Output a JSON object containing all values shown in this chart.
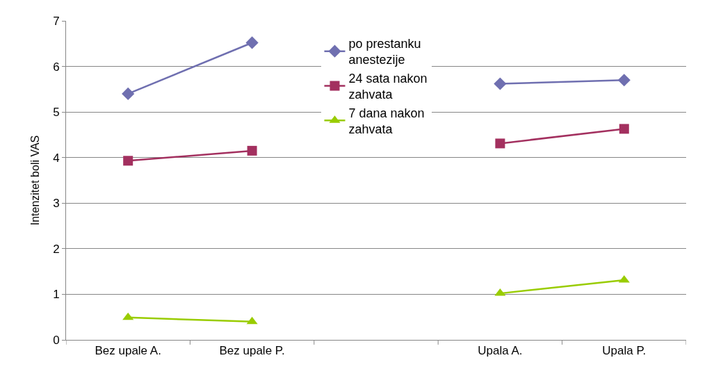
{
  "chart_data": {
    "type": "line",
    "ylabel": "Intenzitet boli VAS",
    "categories": [
      "Bez upale A.",
      "Bez upale P.",
      null,
      "Upala A.",
      "Upala P."
    ],
    "series": [
      {
        "name": "po prestanku anestezije",
        "color": "#6f6fb0",
        "marker": "diamond",
        "values": [
          5.4,
          6.52,
          null,
          5.62,
          5.7
        ]
      },
      {
        "name": "24 sata nakon zahvata",
        "color": "#a3305f",
        "marker": "square",
        "values": [
          3.93,
          4.15,
          null,
          4.31,
          4.63
        ]
      },
      {
        "name": "7 dana nakon zahvata",
        "color": "#99cc00",
        "marker": "triangle",
        "values": [
          0.49,
          0.4,
          null,
          1.02,
          1.31
        ]
      }
    ],
    "ylim": [
      0,
      7
    ],
    "yticks": [
      0,
      1,
      2,
      3,
      4,
      5,
      6,
      7
    ],
    "grid": "y",
    "legend": "top"
  }
}
